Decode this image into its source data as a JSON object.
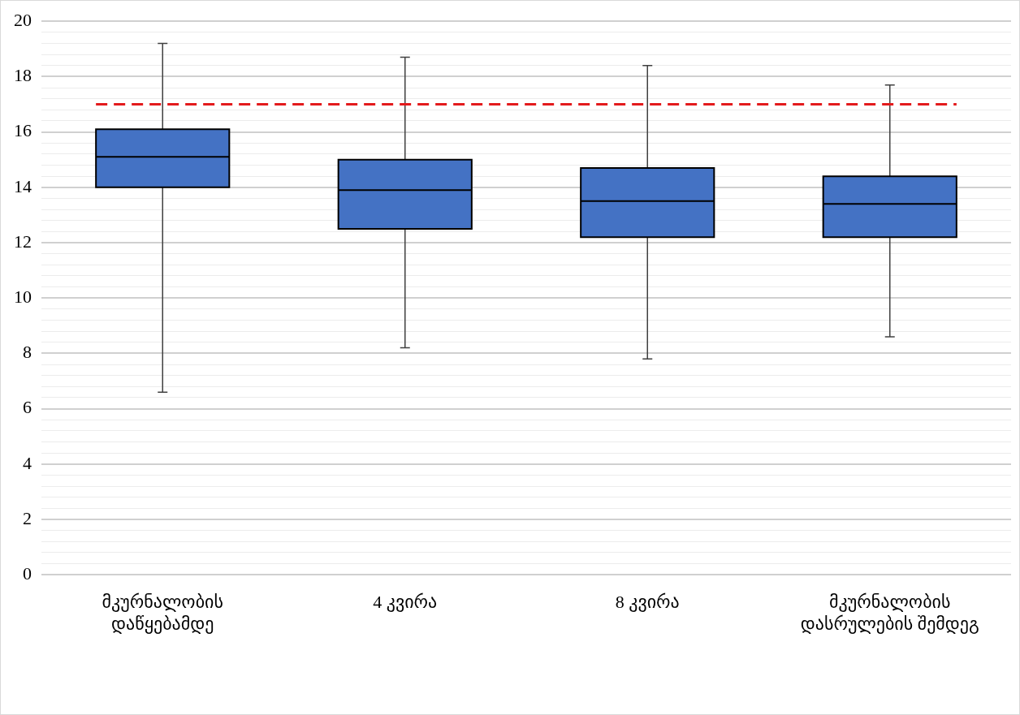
{
  "chart_data": {
    "type": "box",
    "categories": [
      "მკურნალობის დაწყებამდე",
      "4 კვირა",
      "8 კვირა",
      "მკურნალობის დასრულების შემდეგ"
    ],
    "color": "#4472c4",
    "boxes": [
      {
        "low": 6.6,
        "q1": 14.0,
        "median": 15.1,
        "q3": 16.1,
        "high": 19.2
      },
      {
        "low": 8.2,
        "q1": 12.5,
        "median": 13.9,
        "q3": 15.0,
        "high": 18.7
      },
      {
        "low": 7.8,
        "q1": 12.2,
        "median": 13.5,
        "q3": 14.7,
        "high": 18.4
      },
      {
        "low": 8.6,
        "q1": 12.2,
        "median": 13.4,
        "q3": 14.4,
        "high": 17.7
      }
    ],
    "ylim": [
      0,
      20
    ],
    "yticks": [
      0,
      {
        "value": 0.4,
        "label": null
      },
      {
        "value": 0.8,
        "label": null
      },
      {
        "value": 1.2,
        "label": null
      },
      {
        "value": 1.6,
        "label": null
      },
      2,
      {
        "value": 2.4,
        "label": null
      },
      {
        "value": 2.8,
        "label": null
      },
      {
        "value": 3.2,
        "label": null
      },
      {
        "value": 3.6,
        "label": null
      },
      4,
      {
        "value": 4.4,
        "label": null
      },
      {
        "value": 4.8,
        "label": null
      },
      {
        "value": 5.2,
        "label": null
      },
      {
        "value": 5.6,
        "label": null
      },
      6,
      {
        "value": 6.4,
        "label": null
      },
      {
        "value": 6.8,
        "label": null
      },
      {
        "value": 7.2,
        "label": null
      },
      {
        "value": 7.6,
        "label": null
      },
      8,
      {
        "value": 8.4,
        "label": null
      },
      {
        "value": 8.8,
        "label": null
      },
      {
        "value": 9.2,
        "label": null
      },
      {
        "value": 9.6,
        "label": null
      },
      10,
      {
        "value": 10.4,
        "label": null
      },
      {
        "value": 10.8,
        "label": null
      },
      {
        "value": 11.2,
        "label": null
      },
      {
        "value": 11.6,
        "label": null
      },
      12,
      {
        "value": 12.4,
        "label": null
      },
      {
        "value": 12.8,
        "label": null
      },
      {
        "value": 13.2,
        "label": null
      },
      {
        "value": 13.6,
        "label": null
      },
      14,
      {
        "value": 14.4,
        "label": null
      },
      {
        "value": 14.8,
        "label": null
      },
      {
        "value": 15.2,
        "label": null
      },
      {
        "value": 15.6,
        "label": null
      },
      16,
      {
        "value": 16.4,
        "label": null
      },
      {
        "value": 16.8,
        "label": null
      },
      {
        "value": 17.2,
        "label": null
      },
      {
        "value": 17.6,
        "label": null
      },
      18,
      {
        "value": 18.4,
        "label": null
      },
      {
        "value": 18.8,
        "label": null
      },
      {
        "value": 19.2,
        "label": null
      },
      {
        "value": 19.6,
        "label": null
      },
      20
    ],
    "grid": "y",
    "ref_lines": [
      {
        "axis": "y",
        "value": 17,
        "color": "#e31a1c",
        "line_style": "dashed"
      }
    ],
    "legend": false
  }
}
